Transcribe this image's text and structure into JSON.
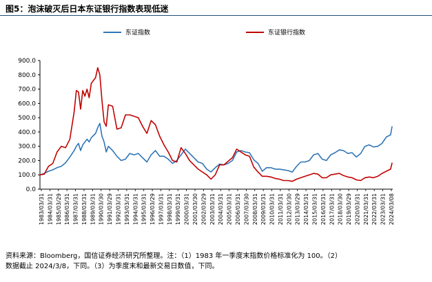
{
  "title": "图5：泡沫破灭后日本东证银行指数表现低迷",
  "notes": {
    "line1": "资料来源：Bloomberg，国信证券经济研究所整理。注：（1）1983 年一季度末指数价格标准化为 100。（2）",
    "line2": "数据截止 2024/3/8，下同。（3）为季度末和最新交易日数值，下同。"
  },
  "colors": {
    "topix": "#2e75b6",
    "banks": "#c00000",
    "axis": "#000000"
  },
  "chart_data": {
    "type": "line",
    "title": "",
    "xlabel": "",
    "ylabel": "",
    "ylim": [
      0,
      900
    ],
    "yticks": [
      "900.0",
      "800.0",
      "700.0",
      "600.0",
      "500.0",
      "400.0",
      "300.0",
      "200.0",
      "100.0",
      "0.0"
    ],
    "ytick_values": [
      900,
      800,
      700,
      600,
      500,
      400,
      300,
      200,
      100,
      0
    ],
    "xlim": [
      1983.0,
      2024.25
    ],
    "xticks": [
      "1983/03/31",
      "1984/03/31",
      "1985/03/29",
      "1986/03/31",
      "1987/03/31",
      "1988/03/31",
      "1989/03/31",
      "1990/03/30",
      "1991/03/29",
      "1992/03/31",
      "1993/03/31",
      "1994/03/31",
      "1995/03/31",
      "1996/03/29",
      "1997/03/31",
      "1998/03/31",
      "1999/03/31",
      "2000/03/31",
      "2001/03/30",
      "2002/03/29",
      "2003/03/31",
      "2004/03/31",
      "2005/03/31",
      "2006/03/31",
      "2007/03/30",
      "2008/03/31",
      "2009/03/31",
      "2010/03/31",
      "2011/03/31",
      "2012/03/30",
      "2013/03/29",
      "2014/03/31",
      "2015/03/31",
      "2016/03/31",
      "2017/03/31",
      "2018/03/30",
      "2019/03/29",
      "2020/03/31",
      "2021/03/31",
      "2022/03/31",
      "2023/03/31",
      "2024/03/08"
    ],
    "grid": false,
    "legend_position": "top",
    "series": [
      {
        "name": "东证指数",
        "color": "#2e75b6",
        "points": [
          [
            1983.0,
            100
          ],
          [
            1983.5,
            110
          ],
          [
            1984.0,
            125
          ],
          [
            1984.5,
            135
          ],
          [
            1985.0,
            150
          ],
          [
            1985.5,
            160
          ],
          [
            1986.0,
            185
          ],
          [
            1986.5,
            225
          ],
          [
            1987.0,
            270
          ],
          [
            1987.25,
            300
          ],
          [
            1987.5,
            320
          ],
          [
            1987.75,
            270
          ],
          [
            1988.0,
            310
          ],
          [
            1988.5,
            350
          ],
          [
            1988.75,
            330
          ],
          [
            1989.0,
            360
          ],
          [
            1989.5,
            390
          ],
          [
            1989.75,
            430
          ],
          [
            1990.0,
            460
          ],
          [
            1990.25,
            370
          ],
          [
            1990.5,
            330
          ],
          [
            1990.75,
            260
          ],
          [
            1991.0,
            300
          ],
          [
            1991.5,
            270
          ],
          [
            1992.0,
            230
          ],
          [
            1992.5,
            200
          ],
          [
            1993.0,
            210
          ],
          [
            1993.5,
            250
          ],
          [
            1994.0,
            240
          ],
          [
            1994.5,
            250
          ],
          [
            1995.0,
            220
          ],
          [
            1995.5,
            190
          ],
          [
            1996.0,
            240
          ],
          [
            1996.5,
            270
          ],
          [
            1997.0,
            230
          ],
          [
            1997.5,
            230
          ],
          [
            1998.0,
            210
          ],
          [
            1998.5,
            180
          ],
          [
            1999.0,
            200
          ],
          [
            1999.5,
            240
          ],
          [
            2000.0,
            280
          ],
          [
            2000.5,
            250
          ],
          [
            2001.0,
            220
          ],
          [
            2001.5,
            190
          ],
          [
            2002.0,
            180
          ],
          [
            2002.5,
            140
          ],
          [
            2003.0,
            120
          ],
          [
            2003.5,
            150
          ],
          [
            2004.0,
            175
          ],
          [
            2004.5,
            170
          ],
          [
            2005.0,
            180
          ],
          [
            2005.5,
            200
          ],
          [
            2006.0,
            260
          ],
          [
            2006.5,
            270
          ],
          [
            2007.0,
            260
          ],
          [
            2007.5,
            255
          ],
          [
            2008.0,
            205
          ],
          [
            2008.5,
            180
          ],
          [
            2009.0,
            125
          ],
          [
            2009.5,
            150
          ],
          [
            2010.0,
            150
          ],
          [
            2010.5,
            140
          ],
          [
            2011.0,
            140
          ],
          [
            2011.5,
            135
          ],
          [
            2012.0,
            130
          ],
          [
            2012.5,
            120
          ],
          [
            2013.0,
            160
          ],
          [
            2013.5,
            190
          ],
          [
            2014.0,
            190
          ],
          [
            2014.5,
            200
          ],
          [
            2015.0,
            240
          ],
          [
            2015.5,
            250
          ],
          [
            2016.0,
            210
          ],
          [
            2016.5,
            200
          ],
          [
            2017.0,
            240
          ],
          [
            2017.5,
            255
          ],
          [
            2018.0,
            275
          ],
          [
            2018.5,
            270
          ],
          [
            2019.0,
            250
          ],
          [
            2019.5,
            255
          ],
          [
            2020.0,
            225
          ],
          [
            2020.5,
            250
          ],
          [
            2021.0,
            300
          ],
          [
            2021.5,
            310
          ],
          [
            2022.0,
            295
          ],
          [
            2022.5,
            300
          ],
          [
            2023.0,
            320
          ],
          [
            2023.5,
            365
          ],
          [
            2024.0,
            380
          ],
          [
            2024.18,
            440
          ]
        ]
      },
      {
        "name": "东证银行指数",
        "color": "#c00000",
        "points": [
          [
            1983.0,
            100
          ],
          [
            1983.5,
            105
          ],
          [
            1984.0,
            160
          ],
          [
            1984.5,
            180
          ],
          [
            1985.0,
            260
          ],
          [
            1985.5,
            300
          ],
          [
            1986.0,
            290
          ],
          [
            1986.5,
            350
          ],
          [
            1987.0,
            540
          ],
          [
            1987.25,
            690
          ],
          [
            1987.5,
            680
          ],
          [
            1987.75,
            560
          ],
          [
            1988.0,
            690
          ],
          [
            1988.25,
            650
          ],
          [
            1988.5,
            700
          ],
          [
            1988.75,
            640
          ],
          [
            1989.0,
            740
          ],
          [
            1989.5,
            780
          ],
          [
            1989.75,
            850
          ],
          [
            1990.0,
            800
          ],
          [
            1990.25,
            620
          ],
          [
            1990.5,
            470
          ],
          [
            1990.75,
            440
          ],
          [
            1991.0,
            590
          ],
          [
            1991.5,
            580
          ],
          [
            1992.0,
            420
          ],
          [
            1992.5,
            430
          ],
          [
            1993.0,
            520
          ],
          [
            1993.5,
            520
          ],
          [
            1994.0,
            510
          ],
          [
            1994.5,
            500
          ],
          [
            1995.0,
            440
          ],
          [
            1995.5,
            390
          ],
          [
            1996.0,
            480
          ],
          [
            1996.5,
            450
          ],
          [
            1997.0,
            370
          ],
          [
            1997.5,
            310
          ],
          [
            1998.0,
            260
          ],
          [
            1998.5,
            200
          ],
          [
            1999.0,
            190
          ],
          [
            1999.5,
            290
          ],
          [
            2000.0,
            250
          ],
          [
            2000.5,
            200
          ],
          [
            2001.0,
            170
          ],
          [
            2001.5,
            140
          ],
          [
            2002.0,
            120
          ],
          [
            2002.5,
            100
          ],
          [
            2003.0,
            70
          ],
          [
            2003.5,
            100
          ],
          [
            2004.0,
            170
          ],
          [
            2004.5,
            170
          ],
          [
            2005.0,
            195
          ],
          [
            2005.5,
            220
          ],
          [
            2006.0,
            280
          ],
          [
            2006.5,
            260
          ],
          [
            2007.0,
            240
          ],
          [
            2007.5,
            230
          ],
          [
            2008.0,
            155
          ],
          [
            2008.5,
            120
          ],
          [
            2009.0,
            90
          ],
          [
            2009.5,
            90
          ],
          [
            2010.0,
            85
          ],
          [
            2010.5,
            75
          ],
          [
            2011.0,
            70
          ],
          [
            2011.5,
            60
          ],
          [
            2012.0,
            60
          ],
          [
            2012.5,
            55
          ],
          [
            2013.0,
            70
          ],
          [
            2013.5,
            80
          ],
          [
            2014.0,
            90
          ],
          [
            2014.5,
            100
          ],
          [
            2015.0,
            110
          ],
          [
            2015.5,
            105
          ],
          [
            2016.0,
            80
          ],
          [
            2016.5,
            80
          ],
          [
            2017.0,
            100
          ],
          [
            2017.5,
            105
          ],
          [
            2018.0,
            110
          ],
          [
            2018.5,
            95
          ],
          [
            2019.0,
            85
          ],
          [
            2019.5,
            80
          ],
          [
            2020.0,
            65
          ],
          [
            2020.5,
            60
          ],
          [
            2021.0,
            80
          ],
          [
            2021.5,
            85
          ],
          [
            2022.0,
            80
          ],
          [
            2022.5,
            90
          ],
          [
            2023.0,
            110
          ],
          [
            2023.5,
            125
          ],
          [
            2024.0,
            140
          ],
          [
            2024.18,
            185
          ]
        ]
      }
    ]
  }
}
